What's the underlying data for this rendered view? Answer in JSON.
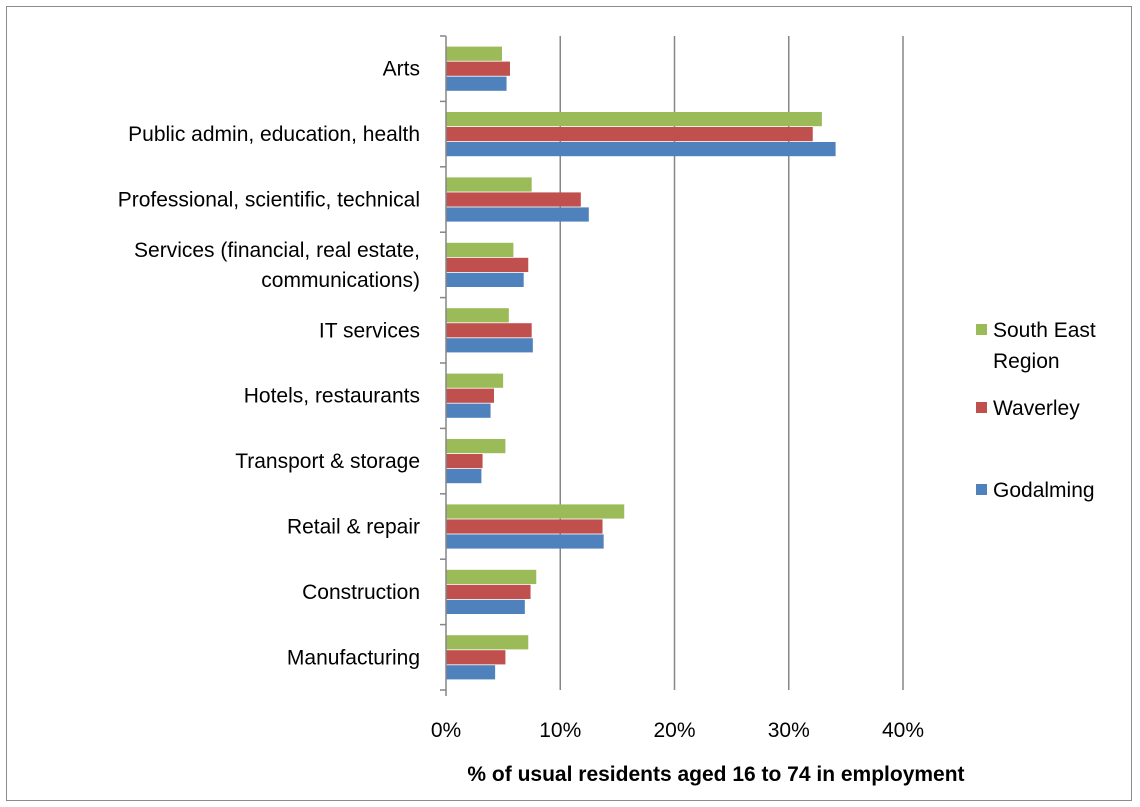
{
  "chart_data": {
    "type": "bar",
    "orientation": "horizontal",
    "title": "",
    "xlabel": "% of usual residents aged 16 to 74 in employment",
    "ylabel": "",
    "xlim": [
      0,
      40
    ],
    "x_ticks": [
      "0%",
      "10%",
      "20%",
      "30%",
      "40%"
    ],
    "grid": "vertical major gridlines",
    "legend_position": "right",
    "categories": [
      "Arts",
      "Public admin, education, health",
      "Professional, scientific, technical",
      "Services (financial, real estate, communications)",
      "IT services",
      "Hotels, restaurants",
      "Transport & storage",
      "Retail & repair",
      "Construction",
      "Manufacturing"
    ],
    "category_label_lines": [
      [
        "Arts"
      ],
      [
        "Public admin, education, health"
      ],
      [
        "Professional, scientific, technical"
      ],
      [
        "Services (financial, real estate,",
        "communications)"
      ],
      [
        "IT services"
      ],
      [
        "Hotels, restaurants"
      ],
      [
        "Transport & storage"
      ],
      [
        "Retail & repair"
      ],
      [
        "Construction"
      ],
      [
        "Manufacturing"
      ]
    ],
    "series": [
      {
        "name": "South East Region",
        "legend_lines": [
          "South East",
          "Region"
        ],
        "color": "#9bbb59",
        "values": [
          4.9,
          32.9,
          7.5,
          5.9,
          5.5,
          5.0,
          5.2,
          15.6,
          7.9,
          7.2
        ]
      },
      {
        "name": "Waverley",
        "legend_lines": [
          "Waverley"
        ],
        "color": "#c0504d",
        "values": [
          5.6,
          32.1,
          11.8,
          7.2,
          7.5,
          4.2,
          3.2,
          13.7,
          7.4,
          5.2
        ]
      },
      {
        "name": "Godalming",
        "legend_lines": [
          "Godalming"
        ],
        "color": "#4f81bd",
        "values": [
          5.3,
          34.1,
          12.5,
          6.8,
          7.6,
          3.9,
          3.1,
          13.8,
          6.9,
          4.3
        ]
      }
    ]
  }
}
